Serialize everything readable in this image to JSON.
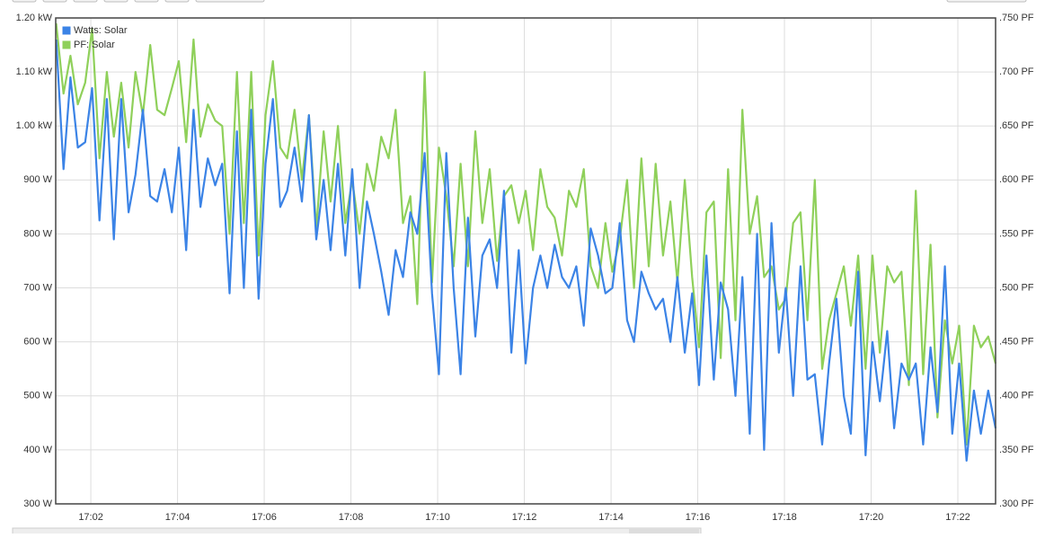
{
  "chart_data": {
    "type": "line",
    "x": [
      1.2,
      1.37,
      1.53,
      1.7,
      1.87,
      2.03,
      2.2,
      2.37,
      2.53,
      2.7,
      2.87,
      3.03,
      3.2,
      3.37,
      3.53,
      3.7,
      3.87,
      4.03,
      4.2,
      4.37,
      4.53,
      4.7,
      4.87,
      5.03,
      5.2,
      5.37,
      5.53,
      5.7,
      5.87,
      6.03,
      6.2,
      6.37,
      6.53,
      6.7,
      6.87,
      7.03,
      7.2,
      7.37,
      7.53,
      7.7,
      7.87,
      8.03,
      8.2,
      8.37,
      8.53,
      8.7,
      8.87,
      9.03,
      9.2,
      9.37,
      9.53,
      9.7,
      9.87,
      10.03,
      10.2,
      10.37,
      10.53,
      10.7,
      10.87,
      11.03,
      11.2,
      11.37,
      11.53,
      11.7,
      11.87,
      12.03,
      12.2,
      12.37,
      12.53,
      12.7,
      12.87,
      13.03,
      13.2,
      13.37,
      13.53,
      13.7,
      13.87,
      14.03,
      14.2,
      14.37,
      14.53,
      14.7,
      14.87,
      15.03,
      15.2,
      15.37,
      15.53,
      15.7,
      15.87,
      16.03,
      16.2,
      16.37,
      16.53,
      16.7,
      16.87,
      17.03,
      17.2,
      17.37,
      17.53,
      17.7,
      17.87,
      18.03,
      18.2,
      18.37,
      18.53,
      18.7,
      18.87,
      19.03,
      19.2,
      19.37,
      19.53,
      19.7,
      19.87,
      20.03,
      20.2,
      20.37,
      20.53,
      20.7,
      20.87,
      21.03,
      21.2,
      21.37,
      21.53,
      21.7,
      21.87,
      22.03,
      22.2,
      22.37,
      22.53,
      22.7,
      22.87
    ],
    "series": [
      {
        "name": "Watts: Solar",
        "color": "#3b83e6",
        "axis": "y",
        "values": [
          1160,
          920,
          1090,
          960,
          970,
          1070,
          825,
          1050,
          790,
          1050,
          840,
          910,
          1030,
          870,
          860,
          920,
          840,
          960,
          770,
          1030,
          850,
          940,
          890,
          930,
          690,
          990,
          700,
          1030,
          680,
          930,
          1050,
          850,
          880,
          960,
          860,
          1020,
          790,
          900,
          770,
          930,
          760,
          920,
          700,
          860,
          800,
          730,
          650,
          770,
          720,
          840,
          800,
          950,
          690,
          540,
          950,
          700,
          540,
          830,
          610,
          760,
          790,
          700,
          880,
          580,
          770,
          560,
          700,
          760,
          700,
          780,
          720,
          700,
          740,
          630,
          810,
          760,
          690,
          700,
          820,
          640,
          600,
          730,
          690,
          660,
          680,
          600,
          720,
          580,
          690,
          520,
          760,
          530,
          710,
          660,
          500,
          720,
          430,
          800,
          400,
          820,
          580,
          700,
          500,
          740,
          530,
          540,
          410,
          560,
          680,
          500,
          430,
          730,
          390,
          600,
          490,
          620,
          440,
          560,
          530,
          560,
          410,
          590,
          470,
          740,
          430,
          560,
          380,
          510,
          430,
          510,
          440
        ]
      },
      {
        "name": "PF: Solar",
        "color": "#8fd05a",
        "axis": "y2",
        "values": [
          0.745,
          0.68,
          0.715,
          0.67,
          0.69,
          0.74,
          0.62,
          0.7,
          0.64,
          0.69,
          0.63,
          0.7,
          0.66,
          0.725,
          0.665,
          0.66,
          0.685,
          0.71,
          0.635,
          0.73,
          0.64,
          0.67,
          0.655,
          0.65,
          0.55,
          0.7,
          0.56,
          0.7,
          0.53,
          0.66,
          0.71,
          0.63,
          0.62,
          0.665,
          0.6,
          0.66,
          0.555,
          0.645,
          0.58,
          0.65,
          0.56,
          0.6,
          0.55,
          0.615,
          0.59,
          0.64,
          0.62,
          0.665,
          0.56,
          0.585,
          0.485,
          0.7,
          0.505,
          0.63,
          0.585,
          0.52,
          0.615,
          0.52,
          0.645,
          0.56,
          0.61,
          0.525,
          0.585,
          0.595,
          0.56,
          0.59,
          0.535,
          0.61,
          0.575,
          0.565,
          0.53,
          0.59,
          0.575,
          0.61,
          0.52,
          0.5,
          0.56,
          0.515,
          0.545,
          0.6,
          0.5,
          0.62,
          0.52,
          0.615,
          0.53,
          0.58,
          0.505,
          0.6,
          0.51,
          0.445,
          0.57,
          0.58,
          0.435,
          0.61,
          0.47,
          0.665,
          0.55,
          0.585,
          0.51,
          0.52,
          0.48,
          0.49,
          0.56,
          0.57,
          0.47,
          0.6,
          0.425,
          0.47,
          0.495,
          0.52,
          0.465,
          0.53,
          0.425,
          0.53,
          0.44,
          0.52,
          0.505,
          0.515,
          0.41,
          0.59,
          0.42,
          0.54,
          0.38,
          0.47,
          0.43,
          0.465,
          0.355,
          0.465,
          0.445,
          0.455,
          0.43
        ]
      }
    ],
    "xlim": [
      1.19,
      22.87
    ],
    "xticks": [
      {
        "value": 2,
        "label": "17:02"
      },
      {
        "value": 4,
        "label": "17:04"
      },
      {
        "value": 6,
        "label": "17:06"
      },
      {
        "value": 8,
        "label": "17:08"
      },
      {
        "value": 10,
        "label": "17:10"
      },
      {
        "value": 12,
        "label": "17:12"
      },
      {
        "value": 14,
        "label": "17:14"
      },
      {
        "value": 16,
        "label": "17:16"
      },
      {
        "value": 18,
        "label": "17:18"
      },
      {
        "value": 20,
        "label": "17:20"
      },
      {
        "value": 22,
        "label": "17:22"
      }
    ],
    "ylim": [
      300,
      1200
    ],
    "yticks": [
      {
        "value": 300,
        "label": "300 W"
      },
      {
        "value": 400,
        "label": "400 W"
      },
      {
        "value": 500,
        "label": "500 W"
      },
      {
        "value": 600,
        "label": "600 W"
      },
      {
        "value": 700,
        "label": "700 W"
      },
      {
        "value": 800,
        "label": "800 W"
      },
      {
        "value": 900,
        "label": "900 W"
      },
      {
        "value": 1000,
        "label": "1.00 kW"
      },
      {
        "value": 1100,
        "label": "1.10 kW"
      },
      {
        "value": 1200,
        "label": "1.20 kW"
      }
    ],
    "y2lim": [
      0.3,
      0.75
    ],
    "y2ticks": [
      {
        "value": 0.3,
        "label": ".300 PF"
      },
      {
        "value": 0.35,
        "label": ".350 PF"
      },
      {
        "value": 0.4,
        "label": ".400 PF"
      },
      {
        "value": 0.45,
        "label": ".450 PF"
      },
      {
        "value": 0.5,
        "label": ".500 PF"
      },
      {
        "value": 0.55,
        "label": ".550 PF"
      },
      {
        "value": 0.6,
        "label": ".600 PF"
      },
      {
        "value": 0.65,
        "label": ".650 PF"
      },
      {
        "value": 0.7,
        "label": ".700 PF"
      },
      {
        "value": 0.75,
        "label": ".750 PF"
      }
    ],
    "grid": true,
    "legend": "top-left"
  }
}
